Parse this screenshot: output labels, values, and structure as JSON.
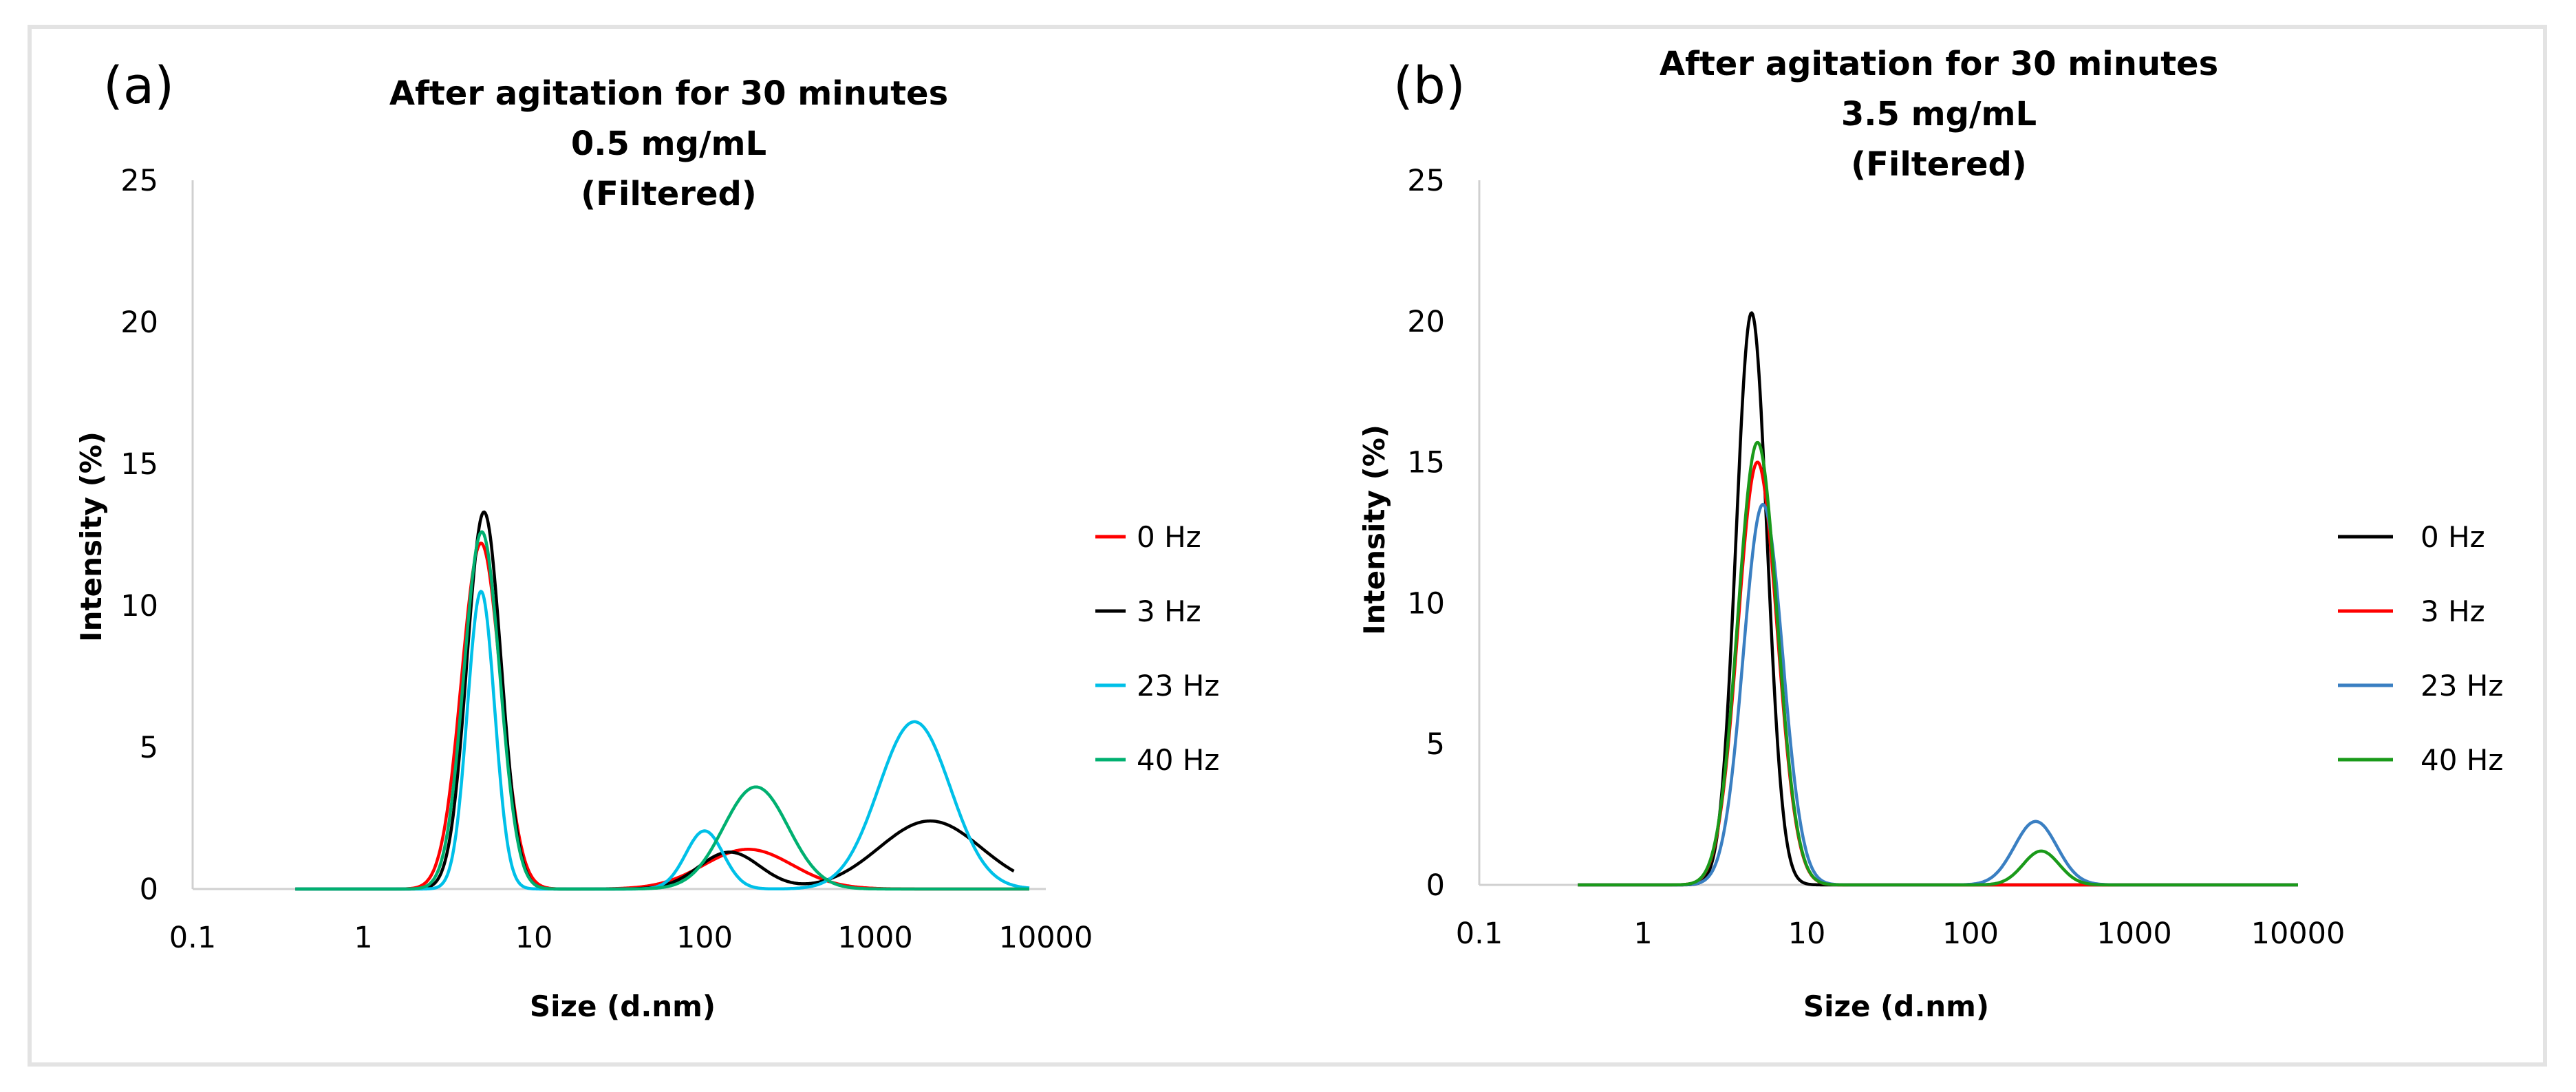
{
  "chart_data": [
    {
      "type": "line",
      "panel_label": "(a)",
      "title": [
        "After agitation for 30 minutes",
        "0.5 mg/mL",
        "(Filtered)"
      ],
      "xlabel": "Size (d.nm)",
      "ylabel": "Intensity (%)",
      "xscale": "log",
      "xlim": [
        0.1,
        10000
      ],
      "ylim": [
        0,
        25
      ],
      "xticks": [
        0.1,
        1,
        10,
        100,
        1000,
        10000
      ],
      "xtick_labels": [
        "0.1",
        "1",
        "10",
        "100",
        "1000",
        "10000"
      ],
      "yticks": [
        0,
        5,
        10,
        15,
        20,
        25
      ],
      "ytick_labels": [
        "0",
        "5",
        "10",
        "15",
        "20",
        "25"
      ],
      "grid": false,
      "legend_position": "right",
      "series": [
        {
          "name": "0 Hz",
          "color": "#ff0000",
          "x_range": [
            0.4,
            8000
          ],
          "peaks": [
            {
              "center": 4.9,
              "height": 12.2,
              "width": 0.115
            },
            {
              "center": 180,
              "height": 1.4,
              "width": 0.26
            }
          ]
        },
        {
          "name": "3 Hz",
          "color": "#000000",
          "x_range": [
            0.4,
            6500
          ],
          "peaks": [
            {
              "center": 5.1,
              "height": 13.3,
              "width": 0.1
            },
            {
              "center": 140,
              "height": 1.3,
              "width": 0.18
            },
            {
              "center": 2100,
              "height": 2.4,
              "width": 0.3
            }
          ]
        },
        {
          "name": "23 Hz",
          "color": "#00c0e8",
          "x_range": [
            0.4,
            8000
          ],
          "peaks": [
            {
              "center": 4.9,
              "height": 10.5,
              "width": 0.08
            },
            {
              "center": 100,
              "height": 2.05,
              "width": 0.11
            },
            {
              "center": 1700,
              "height": 5.9,
              "width": 0.21
            }
          ]
        },
        {
          "name": "40 Hz",
          "color": "#00b070",
          "x_range": [
            0.4,
            8000
          ],
          "peaks": [
            {
              "center": 4.95,
              "height": 12.6,
              "width": 0.105
            },
            {
              "center": 200,
              "height": 3.6,
              "width": 0.19
            }
          ]
        }
      ]
    },
    {
      "type": "line",
      "panel_label": "(b)",
      "title": [
        "After agitation for 30 minutes",
        "3.5 mg/mL",
        "(Filtered)"
      ],
      "xlabel": "Size (d.nm)",
      "ylabel": "Intensity (%)",
      "xscale": "log",
      "xlim": [
        0.1,
        10000
      ],
      "ylim": [
        0,
        25
      ],
      "xticks": [
        0.1,
        1,
        10,
        100,
        1000,
        10000
      ],
      "xtick_labels": [
        "0.1",
        "1",
        "10",
        "100",
        "1000",
        "10000"
      ],
      "yticks": [
        0,
        5,
        10,
        15,
        20,
        25
      ],
      "ytick_labels": [
        "0",
        "5",
        "10",
        "15",
        "20",
        "25"
      ],
      "grid": false,
      "legend_position": "right",
      "series": [
        {
          "name": "0 Hz",
          "color": "#000000",
          "x_range": [
            0.4,
            10000
          ],
          "peaks": [
            {
              "center": 4.6,
              "height": 20.3,
              "width": 0.095
            }
          ]
        },
        {
          "name": "3 Hz",
          "color": "#ff0000",
          "x_range": [
            0.4,
            10000
          ],
          "peaks": [
            {
              "center": 5.0,
              "height": 15.0,
              "width": 0.12
            }
          ]
        },
        {
          "name": "23 Hz",
          "color": "#3a7fc2",
          "x_range": [
            0.4,
            10000
          ],
          "peaks": [
            {
              "center": 5.4,
              "height": 13.5,
              "width": 0.12
            },
            {
              "center": 250,
              "height": 2.25,
              "width": 0.13
            }
          ]
        },
        {
          "name": "40 Hz",
          "color": "#1a9a1a",
          "x_range": [
            0.4,
            10000
          ],
          "peaks": [
            {
              "center": 5.0,
              "height": 15.7,
              "width": 0.12
            },
            {
              "center": 270,
              "height": 1.2,
              "width": 0.11
            }
          ]
        }
      ]
    }
  ]
}
